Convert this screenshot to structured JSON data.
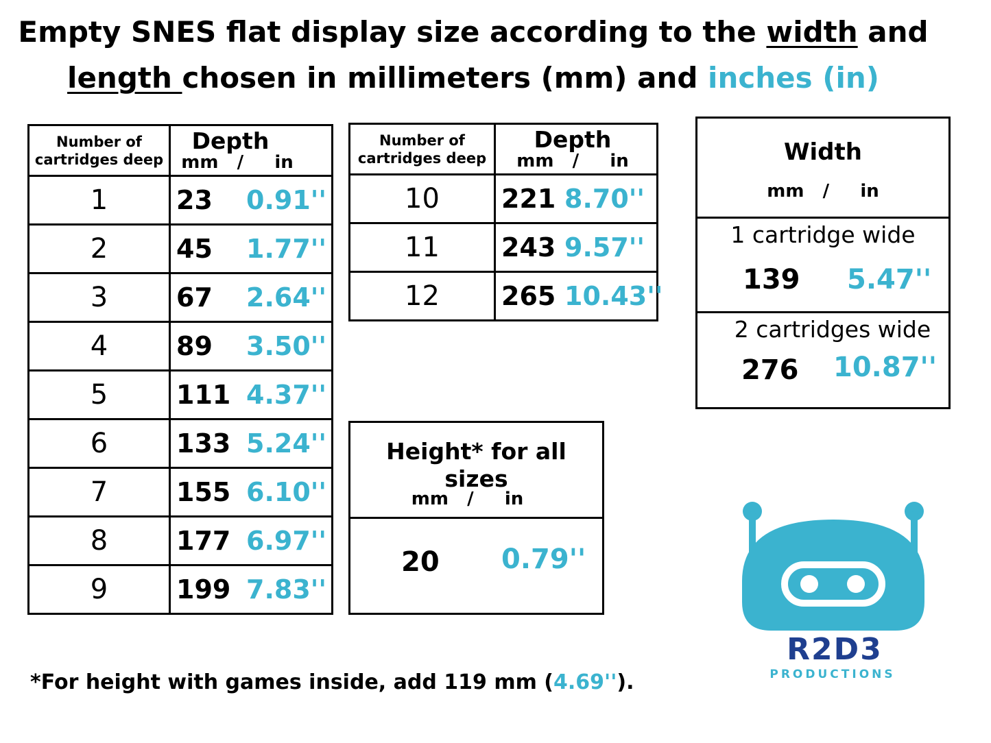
{
  "title": {
    "line1": "Empty SNES flat display size according to the width and",
    "line1_parts": [
      "Empty SNES flat display size according to the ",
      "width",
      " and"
    ],
    "line2_parts": [
      "length ",
      "chosen in millimeters (mm) and ",
      "inches (in)"
    ]
  },
  "depth_table_1": {
    "header_col1": "Number of cartridges deep",
    "header_col1_l1": "Number of",
    "header_col1_l2": "cartridges deep",
    "header_col2": "Depth",
    "header_units": "mm   /     in",
    "rows": [
      {
        "n": "1",
        "mm": "23",
        "in": "0.91''"
      },
      {
        "n": "2",
        "mm": "45",
        "in": "1.77''"
      },
      {
        "n": "3",
        "mm": "67",
        "in": "2.64''"
      },
      {
        "n": "4",
        "mm": "89",
        "in": "3.50''"
      },
      {
        "n": "5",
        "mm": "111",
        "in": "4.37''"
      },
      {
        "n": "6",
        "mm": "133",
        "in": "5.24''"
      },
      {
        "n": "7",
        "mm": "155",
        "in": "6.10''"
      },
      {
        "n": "8",
        "mm": "177",
        "in": "6.97''"
      },
      {
        "n": "9",
        "mm": "199",
        "in": "7.83''"
      }
    ]
  },
  "depth_table_2": {
    "header_col1_l1": "Number of",
    "header_col1_l2": "cartridges deep",
    "header_col2": "Depth",
    "header_units": "mm   /     in",
    "rows": [
      {
        "n": "10",
        "mm": "221",
        "in": "8.70''"
      },
      {
        "n": "11",
        "mm": "243",
        "in": "9.57''"
      },
      {
        "n": "12",
        "mm": "265",
        "in": "10.43''"
      }
    ]
  },
  "width_table": {
    "header": "Width",
    "header_units": "mm   /     in",
    "rows": [
      {
        "label": "1 cartridge wide",
        "mm": "139",
        "in": "5.47''"
      },
      {
        "label": "2 cartridges wide",
        "mm": "276",
        "in": "10.87''"
      }
    ]
  },
  "height_table": {
    "header_l1": "Height* for all",
    "header_l2": "sizes",
    "header_units": "mm   /     in",
    "mm": "20",
    "in": "0.79''"
  },
  "footnote": {
    "before": "*For height with games inside, add 119 mm (",
    "blue": "4.69''",
    "after": ")."
  },
  "logo": {
    "wordmark": "R2D3",
    "subtext": "PRODUCTIONS",
    "color": "#3bb3cf",
    "dark": "#1f3f8f"
  },
  "colors": {
    "accent": "#3bb3cf"
  }
}
